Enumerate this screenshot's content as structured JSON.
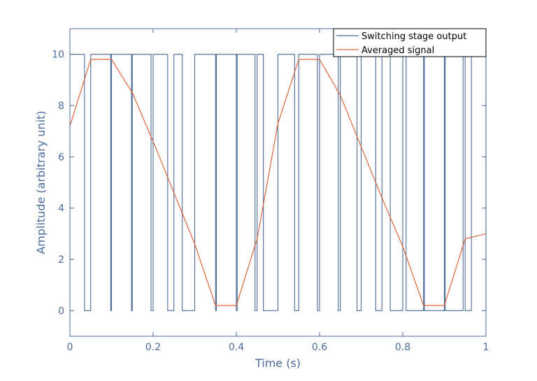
{
  "chart_data": {
    "type": "line",
    "xlabel": "Time (s)",
    "ylabel": "Amplitude (arbitrary unit)",
    "xlim": [
      0,
      1
    ],
    "ylim": [
      -1,
      11
    ],
    "xticks": [
      0,
      0.2,
      0.4,
      0.6,
      0.8,
      1
    ],
    "xtick_labels": [
      "0",
      "0.2",
      "0.4",
      "0.6",
      "0.8",
      "1"
    ],
    "yticks": [
      0,
      2,
      4,
      6,
      8,
      10
    ],
    "ytick_labels": [
      "0",
      "2",
      "4",
      "6",
      "8",
      "10"
    ],
    "grid": false,
    "legend": "top-right",
    "series": [
      {
        "name": "Switching stage output",
        "color": "#4a6a9a",
        "step": true,
        "transitions": [
          0.035,
          0.05,
          0.098,
          0.1,
          0.148,
          0.15,
          0.195,
          0.2,
          0.235,
          0.25,
          0.27,
          0.3,
          0.35,
          0.352,
          0.4,
          0.402,
          0.445,
          0.45,
          0.465,
          0.5,
          0.54,
          0.55,
          0.595,
          0.6,
          0.645,
          0.65,
          0.69,
          0.7,
          0.735,
          0.75,
          0.77,
          0.8,
          0.808,
          0.85,
          0.852,
          0.9,
          0.902,
          0.945,
          0.95,
          0.965,
          1.0
        ],
        "start_value": 10,
        "low": 0,
        "high": 10
      },
      {
        "name": "Averaged signal",
        "color": "#e2633a",
        "x": [
          0,
          0.05,
          0.1,
          0.15,
          0.2,
          0.25,
          0.3,
          0.35,
          0.4,
          0.45,
          0.5,
          0.55,
          0.6,
          0.65,
          0.7,
          0.75,
          0.8,
          0.85,
          0.9,
          0.95,
          1.0
        ],
        "y": [
          7.2,
          9.8,
          9.8,
          8.5,
          6.6,
          4.6,
          2.6,
          0.2,
          0.2,
          2.8,
          7.3,
          9.8,
          9.8,
          8.4,
          6.4,
          4.4,
          2.5,
          0.2,
          0.2,
          2.8,
          3.0
        ]
      }
    ]
  }
}
